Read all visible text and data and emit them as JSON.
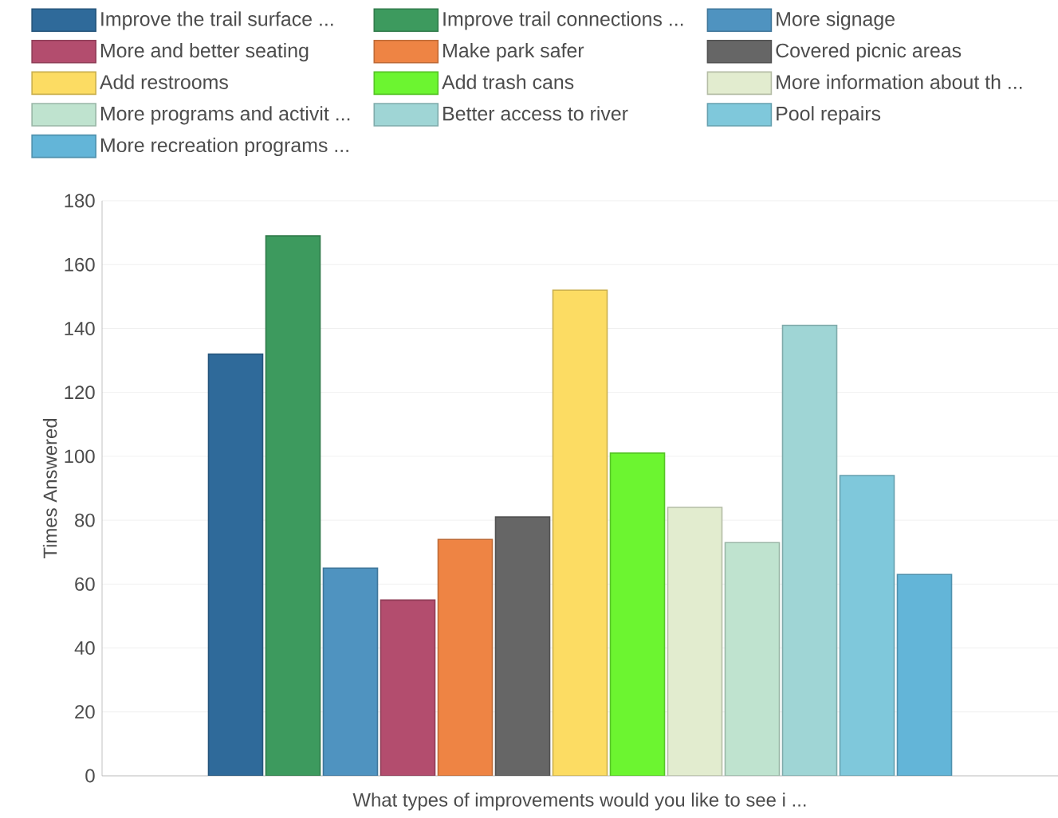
{
  "chart_data": {
    "type": "bar",
    "xlabel": "What types of improvements would you like to see i ...",
    "ylabel": "Times Answered",
    "categories": [
      null
    ],
    "series": [
      {
        "name": "Improve the trail surface ...",
        "color": "#2f6a9a",
        "values": [
          132
        ]
      },
      {
        "name": "Improve trail connections ...",
        "color": "#3d9a5e",
        "values": [
          169
        ]
      },
      {
        "name": "More signage",
        "color": "#4f93c0",
        "values": [
          65
        ]
      },
      {
        "name": "More and better seating",
        "color": "#b34d6e",
        "values": [
          55
        ]
      },
      {
        "name": "Make park safer",
        "color": "#ee8444",
        "values": [
          74
        ]
      },
      {
        "name": "Covered picnic areas",
        "color": "#666666",
        "values": [
          81
        ]
      },
      {
        "name": "Add restrooms",
        "color": "#fcdc63",
        "values": [
          152
        ]
      },
      {
        "name": "Add trash cans",
        "color": "#6cf530",
        "values": [
          101
        ]
      },
      {
        "name": "More information about th ...",
        "color": "#e2eccf",
        "values": [
          84
        ]
      },
      {
        "name": "More programs and activit ...",
        "color": "#bfe3cf",
        "values": [
          73
        ]
      },
      {
        "name": "Better access to river",
        "color": "#9fd5d5",
        "values": [
          141
        ]
      },
      {
        "name": "Pool repairs",
        "color": "#7fc8db",
        "values": [
          94
        ]
      },
      {
        "name": "More recreation programs  ...",
        "color": "#63b5d8",
        "values": [
          63
        ]
      }
    ],
    "ylim": [
      0,
      180
    ],
    "yticks": [
      0,
      20,
      40,
      60,
      80,
      100,
      120,
      140,
      160,
      180
    ],
    "grid": "y",
    "legend": "top"
  }
}
